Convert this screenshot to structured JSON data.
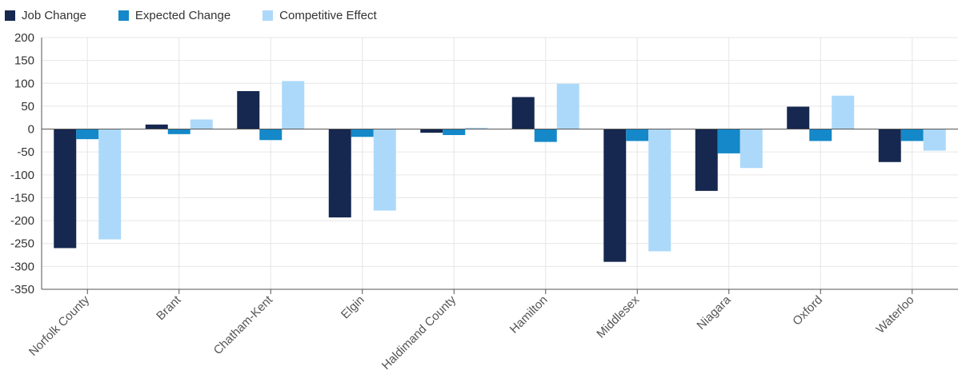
{
  "chart_data": {
    "type": "bar",
    "title": "",
    "xlabel": "",
    "ylabel": "",
    "categories": [
      "Norfolk County",
      "Brant",
      "Chatham-Kent",
      "Elgin",
      "Haldimand County",
      "Hamilton",
      "Middlesex",
      "Niagara",
      "Oxford",
      "Waterloo"
    ],
    "series": [
      {
        "name": "Job Change",
        "color": "#16284f",
        "values": [
          -260,
          10,
          83,
          -193,
          -8,
          70,
          -290,
          -135,
          49,
          -72
        ]
      },
      {
        "name": "Expected Change",
        "color": "#1488c8",
        "values": [
          -22,
          -11,
          -24,
          -17,
          -13,
          -28,
          -26,
          -53,
          -26,
          -26
        ]
      },
      {
        "name": "Competitive Effect",
        "color": "#acd9fa",
        "values": [
          -241,
          21,
          105,
          -178,
          3,
          99,
          -267,
          -85,
          73,
          -47
        ]
      }
    ],
    "ylim": [
      -350,
      200
    ],
    "yticks": [
      200,
      150,
      100,
      50,
      0,
      -50,
      -100,
      -150,
      -200,
      -250,
      -300,
      -350
    ],
    "grid": true,
    "legend": "top-left"
  }
}
